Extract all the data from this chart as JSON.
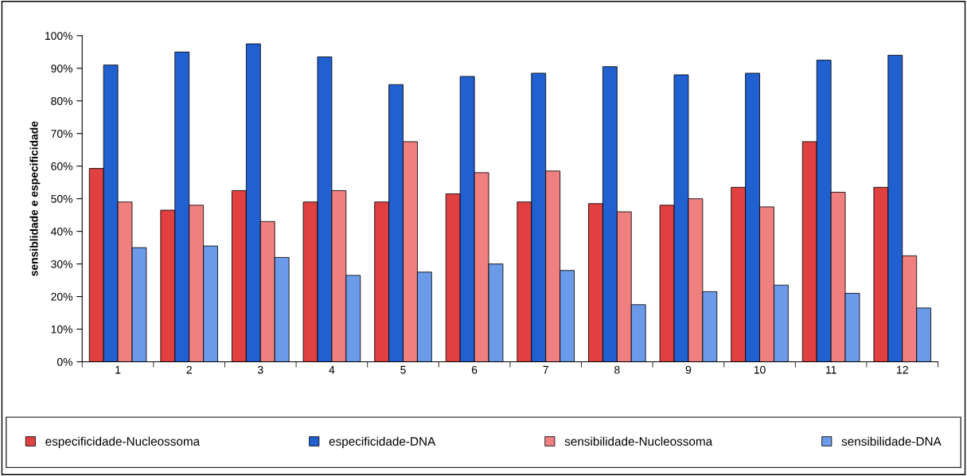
{
  "chart_data": {
    "type": "bar",
    "ylabel": "sensiblidade e especificidade",
    "categories": [
      "1",
      "2",
      "3",
      "4",
      "5",
      "6",
      "7",
      "8",
      "9",
      "10",
      "11",
      "12"
    ],
    "series": [
      {
        "name": "especificidade-Nucleossoma",
        "color": "#e04040",
        "values": [
          59.3,
          46.5,
          52.5,
          49,
          49,
          51.5,
          49,
          48.5,
          48,
          53.5,
          67.5,
          53.5
        ]
      },
      {
        "name": "especificidade-DNA",
        "color": "#2060d0",
        "values": [
          91,
          95,
          97.5,
          93.5,
          85,
          87.5,
          88.5,
          90.5,
          88,
          88.5,
          92.5,
          94
        ]
      },
      {
        "name": "sensibilidade-Nucleossoma",
        "color": "#f08080",
        "values": [
          49,
          48,
          43,
          52.5,
          67.5,
          58,
          58.5,
          46,
          50,
          47.5,
          52,
          32.5
        ]
      },
      {
        "name": "sensibilidade-DNA",
        "color": "#6a9ae8",
        "values": [
          35,
          35.5,
          32,
          26.5,
          27.5,
          30,
          28,
          17.5,
          21.5,
          23.5,
          21,
          16.5
        ]
      }
    ],
    "ylim": [
      0,
      100
    ],
    "yticks": [
      {
        "value": 0,
        "label": "0%"
      },
      {
        "value": 10,
        "label": "10%"
      },
      {
        "value": 20,
        "label": "20%"
      },
      {
        "value": 30,
        "label": "30%"
      },
      {
        "value": 40,
        "label": "40%"
      },
      {
        "value": 50,
        "label": "50%"
      },
      {
        "value": 60,
        "label": "60%"
      },
      {
        "value": 70,
        "label": "70%"
      },
      {
        "value": 80,
        "label": "80%"
      },
      {
        "value": 90,
        "label": "90%"
      },
      {
        "value": 100,
        "label": "100%"
      }
    ],
    "grid": false,
    "legend": "bottom"
  }
}
